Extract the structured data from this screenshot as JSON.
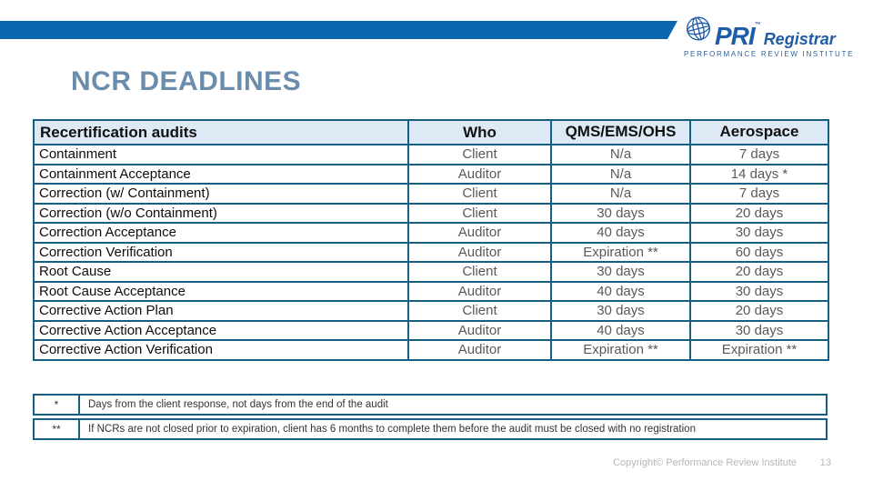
{
  "slide": {
    "title": "NCR DEADLINES",
    "footer": {
      "copyright": "Copyright© Performance Review Institute",
      "page_number": "13"
    }
  },
  "logo": {
    "brand": "PRI",
    "trademark": "™",
    "brand_suffix": "Registrar",
    "tagline": "PERFORMANCE REVIEW INSTITUTE"
  },
  "table": {
    "headers": [
      "Recertification audits",
      "Who",
      "QMS/EMS/OHS",
      "Aerospace"
    ],
    "rows": [
      [
        "Containment",
        "Client",
        "N/a",
        "7 days"
      ],
      [
        "Containment Acceptance",
        "Auditor",
        "N/a",
        "14 days *"
      ],
      [
        "Correction (w/ Containment)",
        "Client",
        "N/a",
        "7 days"
      ],
      [
        "Correction (w/o Containment)",
        "Client",
        "30 days",
        "20 days"
      ],
      [
        "Correction Acceptance",
        "Auditor",
        "40 days",
        "30 days"
      ],
      [
        "Correction Verification",
        "Auditor",
        "Expiration **",
        "60 days"
      ],
      [
        "Root Cause",
        "Client",
        "30 days",
        "20 days"
      ],
      [
        "Root Cause Acceptance",
        "Auditor",
        "40 days",
        "30 days"
      ],
      [
        "Corrective Action Plan",
        "Client",
        "30 days",
        "20 days"
      ],
      [
        "Corrective Action Acceptance",
        "Auditor",
        "40 days",
        "30 days"
      ],
      [
        "Corrective Action Verification",
        "Auditor",
        "Expiration **",
        "Expiration **"
      ]
    ]
  },
  "footnotes": [
    {
      "marker": "*",
      "text": "Days from the client response, not days from the end of the audit"
    },
    {
      "marker": "**",
      "text": "If NCRs are not closed prior to expiration, client has 6 months to complete them before the audit must be closed with no registration"
    }
  ],
  "colors": {
    "top_bar_blue": "#0a67ae",
    "table_border_blue": "#175f82",
    "header_row_bg": "#ddeaf5",
    "title_slate_blue": "#6b8caa",
    "logo_blue": "#1f5ca8",
    "cell_gray_text": "#595959",
    "footer_gray": "#b7b7b7"
  }
}
